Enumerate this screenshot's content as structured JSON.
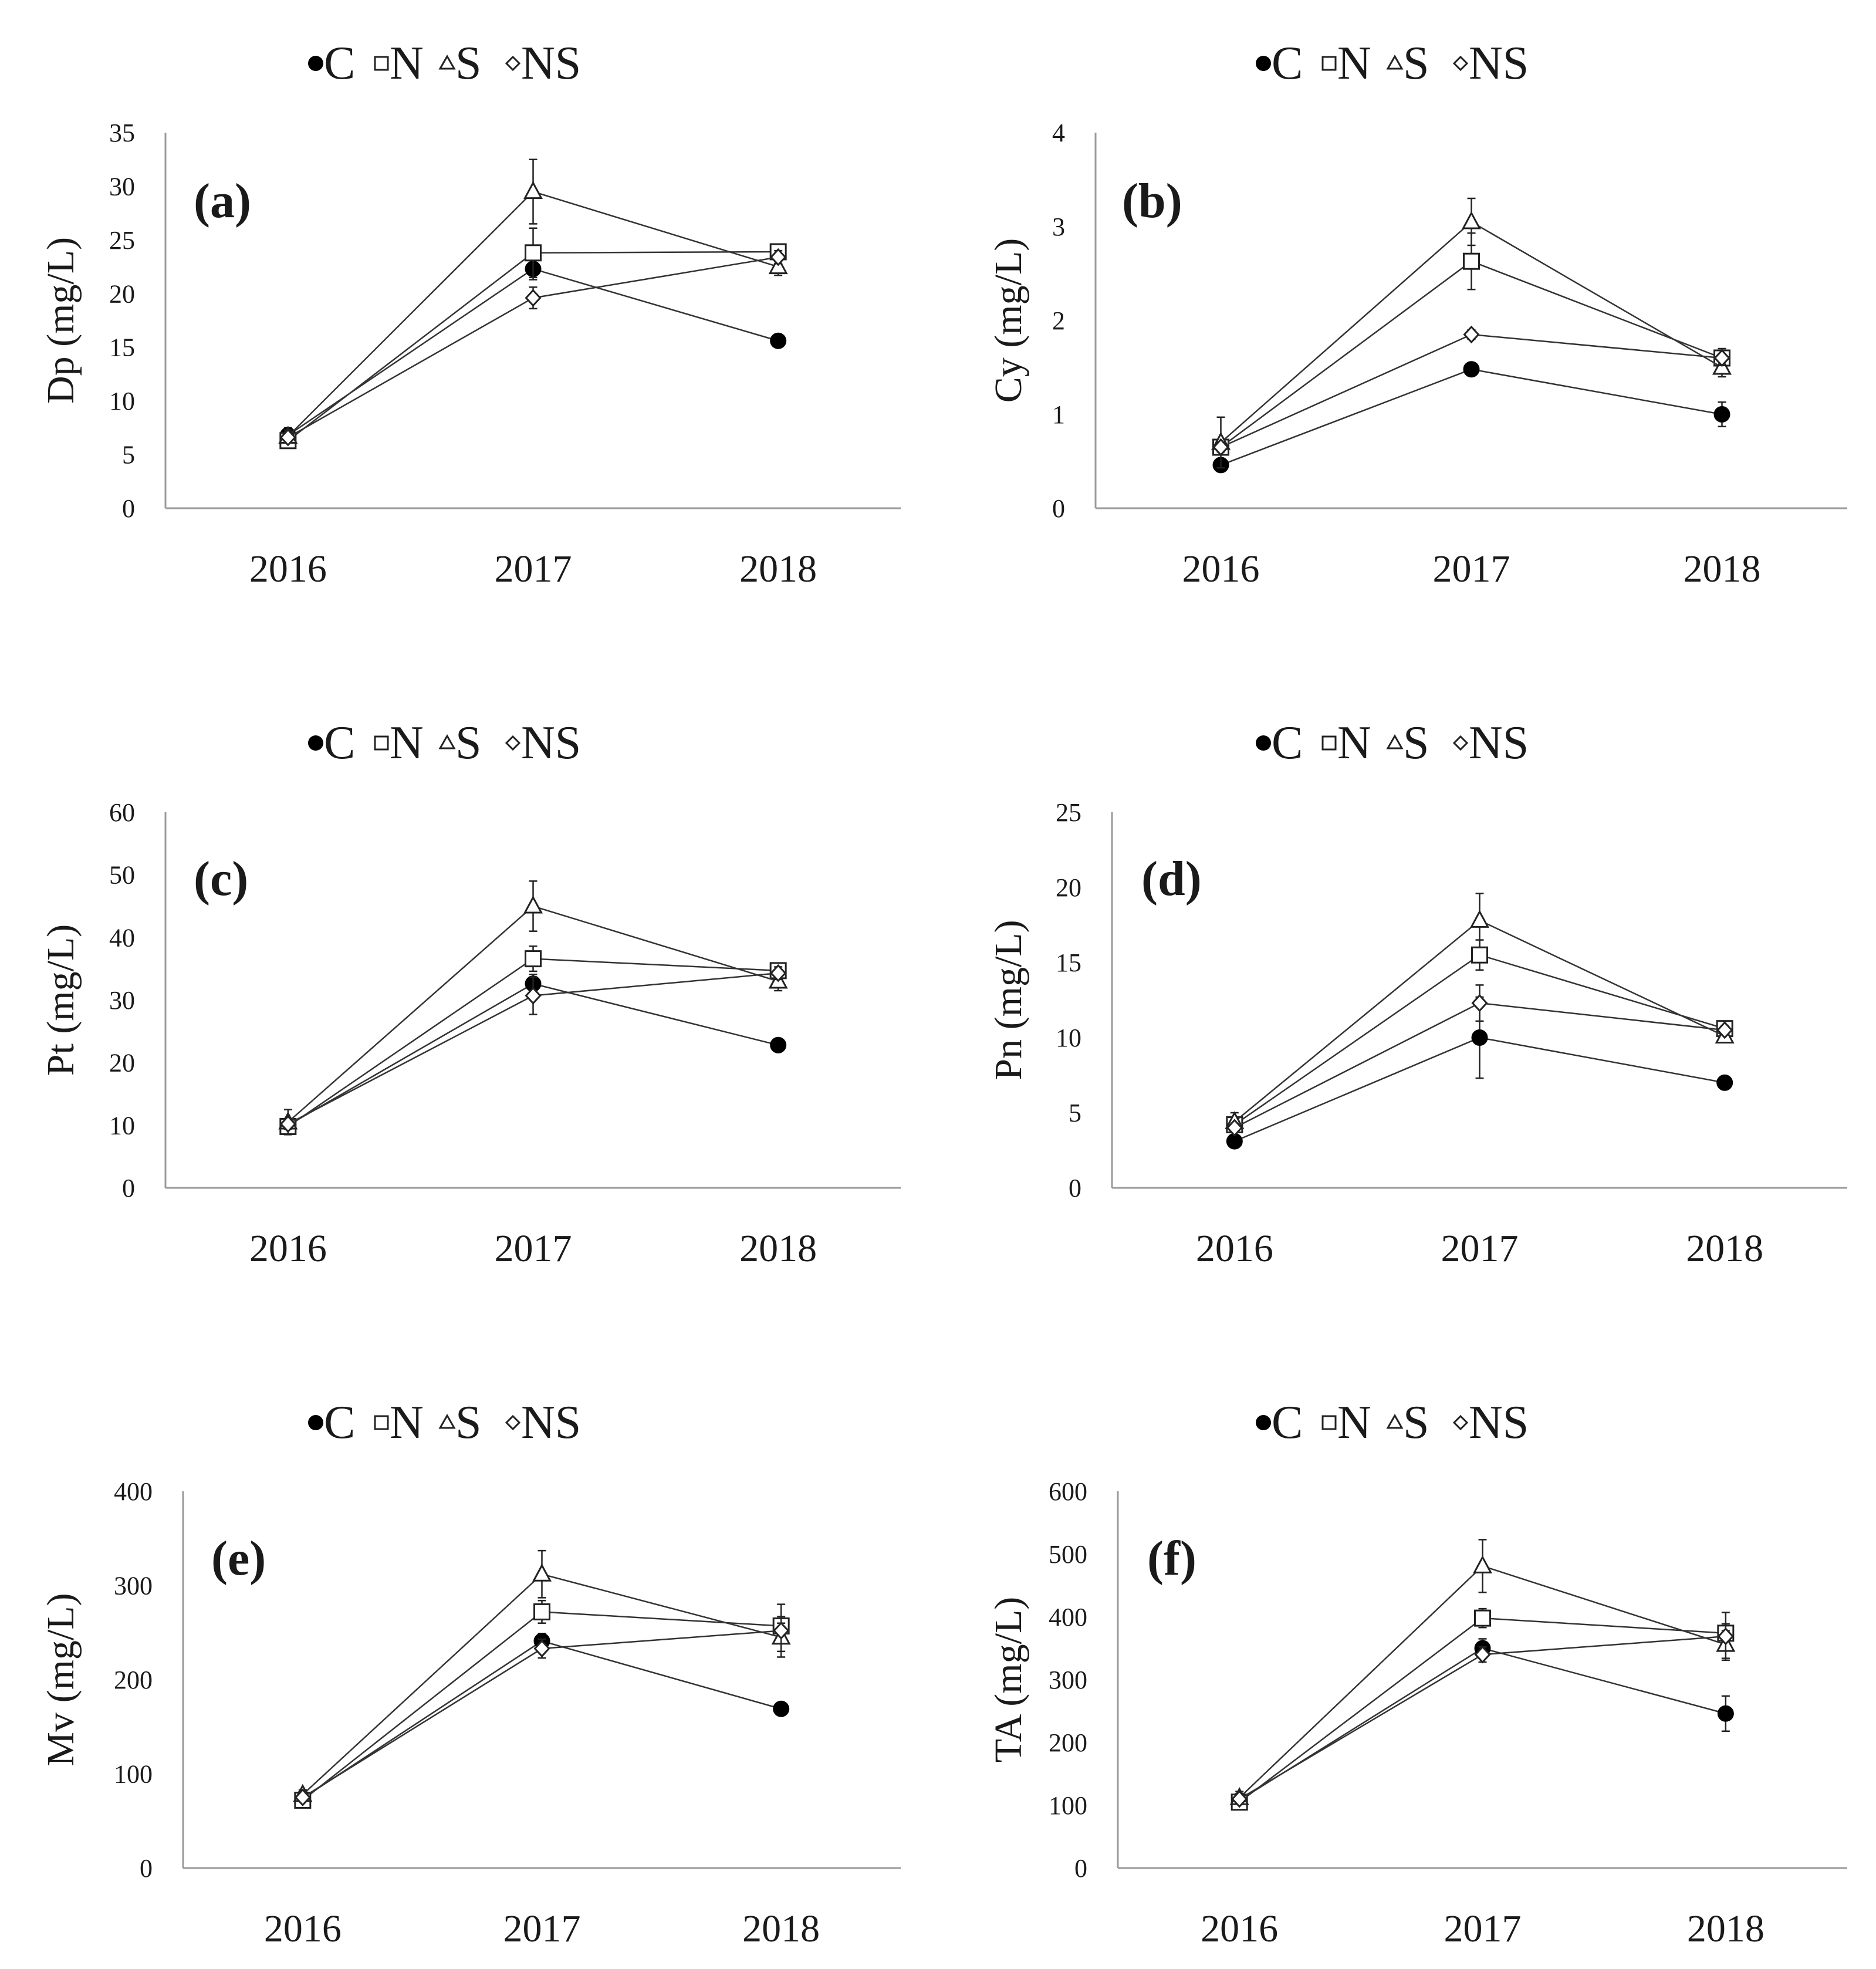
{
  "figure": {
    "categories": [
      "2016",
      "2017",
      "2018"
    ],
    "legend_labels": [
      "C",
      "N",
      "S",
      "NS"
    ]
  },
  "chart_data": [
    {
      "type": "line",
      "panel_label": "(a)",
      "ylabel": "Dp (mg/L)",
      "categories": [
        "2016",
        "2017",
        "2018"
      ],
      "ylim": [
        0,
        35
      ],
      "yticks": [
        "0",
        "5",
        "10",
        "15",
        "20",
        "25",
        "30",
        "35"
      ],
      "legend": [
        "C",
        "N",
        "S",
        "NS"
      ],
      "legend_position": "top",
      "series": [
        {
          "name": "C",
          "marker": "filled-circle",
          "values": [
            6.8,
            22.3,
            15.6
          ],
          "errors": [
            0.7,
            1.0,
            0.3
          ]
        },
        {
          "name": "N",
          "marker": "open-square",
          "values": [
            6.3,
            23.8,
            23.9
          ],
          "errors": [
            0.5,
            2.3,
            0.5
          ]
        },
        {
          "name": "S",
          "marker": "open-triangle",
          "values": [
            6.7,
            29.5,
            22.5
          ],
          "errors": [
            0.6,
            3.0,
            0.8
          ]
        },
        {
          "name": "NS",
          "marker": "open-diamond",
          "values": [
            6.6,
            19.6,
            23.4
          ],
          "errors": [
            0.5,
            1.0,
            0.6
          ]
        }
      ]
    },
    {
      "type": "line",
      "panel_label": "(b)",
      "ylabel": "Cy (mg/L)",
      "categories": [
        "2016",
        "2017",
        "2018"
      ],
      "ylim": [
        0,
        4
      ],
      "yticks": [
        "0",
        "1",
        "2",
        "3",
        "4"
      ],
      "legend": [
        "C",
        "N",
        "S",
        "NS"
      ],
      "legend_position": "top",
      "series": [
        {
          "name": "C",
          "marker": "filled-circle",
          "values": [
            0.46,
            1.48,
            1.0
          ],
          "errors": [
            0.03,
            0.06,
            0.13
          ]
        },
        {
          "name": "N",
          "marker": "open-square",
          "values": [
            0.65,
            2.63,
            1.6
          ],
          "errors": [
            0.06,
            0.3,
            0.1
          ]
        },
        {
          "name": "S",
          "marker": "open-triangle",
          "values": [
            0.7,
            3.05,
            1.5
          ],
          "errors": [
            0.27,
            0.25,
            0.1
          ]
        },
        {
          "name": "NS",
          "marker": "open-diamond",
          "values": [
            0.65,
            1.85,
            1.6
          ],
          "errors": [
            0.05,
            0.05,
            0.08
          ]
        }
      ]
    },
    {
      "type": "line",
      "panel_label": "(c)",
      "ylabel": "Pt (mg/L)",
      "categories": [
        "2016",
        "2017",
        "2018"
      ],
      "ylim": [
        0,
        60
      ],
      "yticks": [
        "0",
        "10",
        "20",
        "30",
        "40",
        "50",
        "60"
      ],
      "legend": [
        "C",
        "N",
        "S",
        "NS"
      ],
      "legend_position": "top",
      "series": [
        {
          "name": "C",
          "marker": "filled-circle",
          "values": [
            10.0,
            32.6,
            22.8
          ],
          "errors": [
            1.0,
            1.5,
            0.5
          ]
        },
        {
          "name": "N",
          "marker": "open-square",
          "values": [
            9.8,
            36.6,
            34.7
          ],
          "errors": [
            0.8,
            2.0,
            1.0
          ]
        },
        {
          "name": "S",
          "marker": "open-triangle",
          "values": [
            10.5,
            45.0,
            33.0
          ],
          "errors": [
            2.0,
            4.0,
            1.5
          ]
        },
        {
          "name": "NS",
          "marker": "open-diamond",
          "values": [
            10.2,
            30.7,
            34.3
          ],
          "errors": [
            0.8,
            3.0,
            1.0
          ]
        }
      ]
    },
    {
      "type": "line",
      "panel_label": "(d)",
      "ylabel": "Pn (mg/L)",
      "categories": [
        "2016",
        "2017",
        "2018"
      ],
      "ylim": [
        0,
        25
      ],
      "yticks": [
        "0",
        "5",
        "10",
        "15",
        "20",
        "25"
      ],
      "legend": [
        "C",
        "N",
        "S",
        "NS"
      ],
      "legend_position": "top",
      "series": [
        {
          "name": "C",
          "marker": "filled-circle",
          "values": [
            3.1,
            10.0,
            7.0
          ],
          "errors": [
            0.2,
            2.7,
            0.2
          ]
        },
        {
          "name": "N",
          "marker": "open-square",
          "values": [
            4.2,
            15.5,
            10.6
          ],
          "errors": [
            0.4,
            1.0,
            0.3
          ]
        },
        {
          "name": "S",
          "marker": "open-triangle",
          "values": [
            4.4,
            17.8,
            10.1
          ],
          "errors": [
            0.6,
            1.8,
            0.3
          ]
        },
        {
          "name": "NS",
          "marker": "open-diamond",
          "values": [
            4.0,
            12.3,
            10.5
          ],
          "errors": [
            0.3,
            1.2,
            0.3
          ]
        }
      ]
    },
    {
      "type": "line",
      "panel_label": "(e)",
      "ylabel": "Mv (mg/L)",
      "categories": [
        "2016",
        "2017",
        "2018"
      ],
      "ylim": [
        0,
        400
      ],
      "yticks": [
        "0",
        "100",
        "200",
        "300",
        "400"
      ],
      "legend": [
        "C",
        "N",
        "S",
        "NS"
      ],
      "legend_position": "top",
      "series": [
        {
          "name": "C",
          "marker": "filled-circle",
          "values": [
            74,
            241,
            169
          ],
          "errors": [
            4,
            8,
            6
          ]
        },
        {
          "name": "N",
          "marker": "open-square",
          "values": [
            72,
            272,
            257
          ],
          "errors": [
            4,
            12,
            10
          ]
        },
        {
          "name": "S",
          "marker": "open-triangle",
          "values": [
            78,
            312,
            245
          ],
          "errors": [
            5,
            25,
            15
          ]
        },
        {
          "name": "NS",
          "marker": "open-diamond",
          "values": [
            75,
            233,
            252
          ],
          "errors": [
            4,
            10,
            28
          ]
        }
      ]
    },
    {
      "type": "line",
      "panel_label": "(f)",
      "ylabel": "TA (mg/L)",
      "categories": [
        "2016",
        "2017",
        "2018"
      ],
      "ylim": [
        0,
        600
      ],
      "yticks": [
        "0",
        "100",
        "200",
        "300",
        "400",
        "500",
        "600"
      ],
      "legend": [
        "C",
        "N",
        "S",
        "NS"
      ],
      "legend_position": "top",
      "series": [
        {
          "name": "C",
          "marker": "filled-circle",
          "values": [
            108,
            350,
            246
          ],
          "errors": [
            8,
            15,
            28
          ]
        },
        {
          "name": "N",
          "marker": "open-square",
          "values": [
            105,
            398,
            374
          ],
          "errors": [
            6,
            15,
            15
          ]
        },
        {
          "name": "S",
          "marker": "open-triangle",
          "values": [
            112,
            481,
            356
          ],
          "errors": [
            10,
            42,
            22
          ]
        },
        {
          "name": "NS",
          "marker": "open-diamond",
          "values": [
            110,
            340,
            369
          ],
          "errors": [
            8,
            12,
            38
          ]
        }
      ]
    }
  ]
}
